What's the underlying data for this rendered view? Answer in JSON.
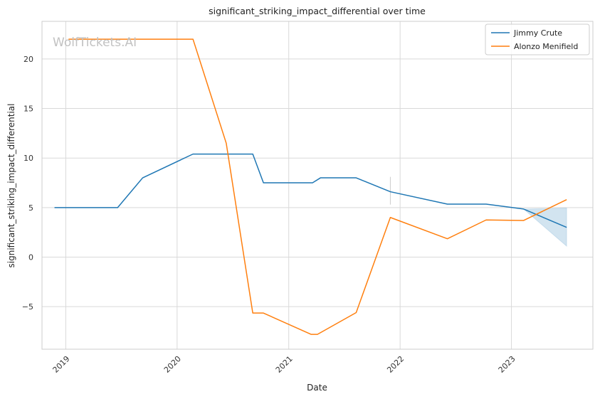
{
  "chart_data": {
    "type": "line",
    "title": "significant_striking_impact_differential over time",
    "xlabel": "Date",
    "ylabel": "significant_striking_impact_differential",
    "watermark": "WolfTickets.AI",
    "xlim": [
      "2018-10-15",
      "2023-09-25"
    ],
    "ylim": [
      -9.3,
      23.8
    ],
    "x_ticks": [
      "2019-01-01",
      "2020-01-01",
      "2021-01-01",
      "2022-01-01",
      "2023-01-01"
    ],
    "x_tick_labels": [
      "2019",
      "2020",
      "2021",
      "2022",
      "2023"
    ],
    "y_ticks": [
      -5,
      0,
      5,
      10,
      15,
      20
    ],
    "y_tick_labels": [
      "−5",
      "0",
      "5",
      "10",
      "15",
      "20"
    ],
    "grid": true,
    "legend_position": "top-right",
    "series": [
      {
        "name": "Jimmy Crute",
        "color": "#1f77b4",
        "x": [
          "2018-11-25",
          "2019-06-20",
          "2019-09-10",
          "2020-02-22",
          "2020-09-05",
          "2020-10-10",
          "2021-03-20",
          "2021-04-15",
          "2021-08-10",
          "2021-11-30",
          "2022-06-05",
          "2022-10-10",
          "2023-02-10",
          "2023-07-01"
        ],
        "y": [
          5.0,
          5.0,
          8.0,
          10.4,
          10.4,
          7.5,
          7.5,
          8.0,
          8.0,
          6.6,
          5.35,
          5.35,
          4.85,
          3.0
        ],
        "band": {
          "x": [
            "2023-02-10",
            "2023-07-01"
          ],
          "lower": [
            4.85,
            1.1
          ],
          "upper": [
            4.85,
            4.95
          ]
        }
      },
      {
        "name": "Alonzo Menifield",
        "color": "#ff7f0e",
        "x": [
          "2019-01-10",
          "2020-02-22",
          "2020-06-10",
          "2020-09-05",
          "2020-10-10",
          "2021-03-15",
          "2021-04-05",
          "2021-08-10",
          "2021-11-30",
          "2022-06-05",
          "2022-10-10",
          "2023-02-10",
          "2023-07-01"
        ],
        "y": [
          22.0,
          22.0,
          11.5,
          -5.65,
          -5.65,
          -7.8,
          -7.8,
          -5.6,
          4.0,
          1.85,
          3.75,
          3.7,
          5.8
        ]
      }
    ]
  }
}
